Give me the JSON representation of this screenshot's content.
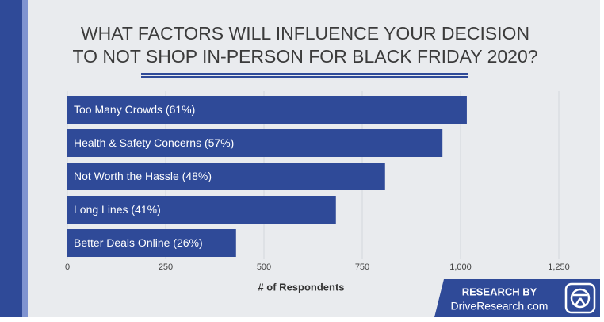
{
  "chart_data": {
    "type": "bar",
    "orientation": "horizontal",
    "title": [
      "WHAT FACTORS WILL INFLUENCE YOUR DECISION",
      "TO NOT SHOP IN-PERSON FOR BLACK FRIDAY 2020?"
    ],
    "categories": [
      "Too Many Crowds (61%)",
      "Health & Safety Concerns (57%)",
      "Not Worth the Hassle (48%)",
      "Long Lines (41%)",
      "Better Deals Online (26%)"
    ],
    "values": [
      1016,
      954,
      808,
      683,
      429
    ],
    "color": "#2f4a98",
    "xlabel": "# of Respondents",
    "xlim": [
      0,
      1250
    ],
    "xticks": [
      0,
      250,
      500,
      750,
      {
        "value": 1000,
        "label": "1,000"
      },
      {
        "value": 1250,
        "label": "1,250"
      }
    ],
    "grid": true
  },
  "badge": {
    "line1": "RESEARCH BY",
    "line2": "DriveResearch.com"
  }
}
